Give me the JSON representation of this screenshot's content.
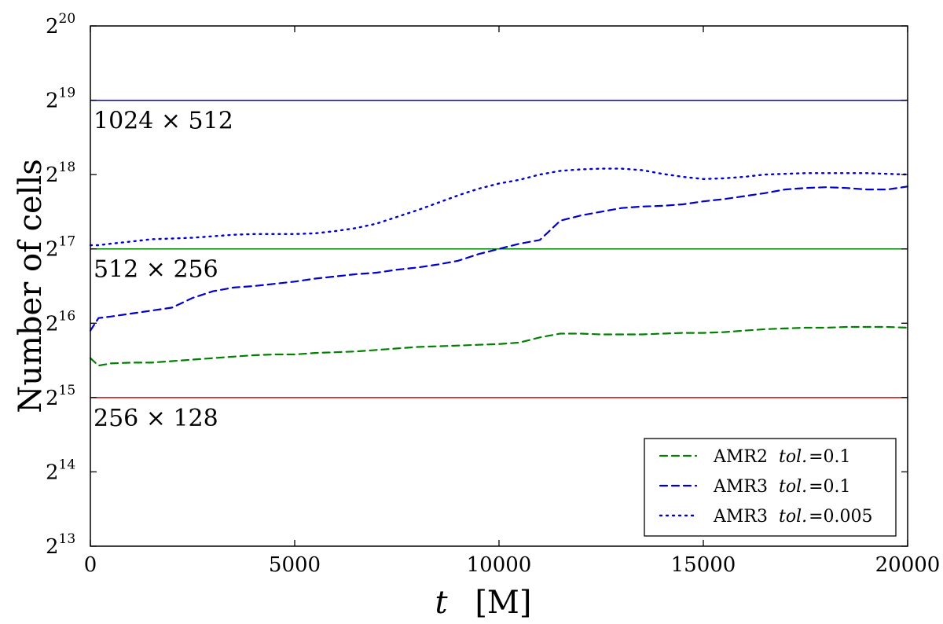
{
  "chart_data": {
    "type": "line",
    "xlabel": {
      "var": "t",
      "unit": "[M]"
    },
    "ylabel": "Number  of  cells",
    "xlim": [
      0,
      20000
    ],
    "ylim_log2": [
      13,
      20
    ],
    "y_scale": "log2",
    "grid": false,
    "legend_placement": "lower-right",
    "x_ticks": [
      {
        "value": 0,
        "label": "0"
      },
      {
        "value": 5000,
        "label": "5000"
      },
      {
        "value": 10000,
        "label": "10000"
      },
      {
        "value": 15000,
        "label": "15000"
      },
      {
        "value": 20000,
        "label": "20000"
      }
    ],
    "y_ticks": [
      {
        "exp": 13,
        "base": "2",
        "sup": "13"
      },
      {
        "exp": 14,
        "base": "2",
        "sup": "14"
      },
      {
        "exp": 15,
        "base": "2",
        "sup": "15"
      },
      {
        "exp": 16,
        "base": "2",
        "sup": "16"
      },
      {
        "exp": 17,
        "base": "2",
        "sup": "17"
      },
      {
        "exp": 18,
        "base": "2",
        "sup": "18"
      },
      {
        "exp": 19,
        "base": "2",
        "sup": "19"
      },
      {
        "exp": 20,
        "base": "2",
        "sup": "20"
      }
    ],
    "reference_lines": [
      {
        "label": "1024 × 512",
        "log2_value": 19,
        "color": "#0000cc"
      },
      {
        "label": "512 × 256",
        "log2_value": 17,
        "color": "#008000"
      },
      {
        "label": "256 × 128",
        "log2_value": 15,
        "color": "#e00000"
      }
    ],
    "series": [
      {
        "name": "AMR2",
        "tol_label": "tol.",
        "tol_value": "=0.1",
        "color": "#008000",
        "style": "dashed",
        "x": [
          0,
          200,
          500,
          1000,
          1500,
          2000,
          2500,
          3000,
          3500,
          4000,
          4500,
          5000,
          5500,
          6000,
          6500,
          7000,
          7500,
          8000,
          8500,
          9000,
          9500,
          10000,
          10500,
          11000,
          11500,
          12000,
          12500,
          13000,
          13500,
          14000,
          14500,
          15000,
          15500,
          16000,
          16500,
          17000,
          17500,
          18000,
          18500,
          19000,
          19500,
          20000
        ],
        "y_log2": [
          15.53,
          15.43,
          15.46,
          15.47,
          15.47,
          15.49,
          15.51,
          15.53,
          15.55,
          15.57,
          15.58,
          15.58,
          15.6,
          15.61,
          15.62,
          15.64,
          15.66,
          15.68,
          15.69,
          15.7,
          15.71,
          15.72,
          15.74,
          15.81,
          15.86,
          15.86,
          15.85,
          15.85,
          15.85,
          15.86,
          15.87,
          15.87,
          15.88,
          15.9,
          15.92,
          15.93,
          15.94,
          15.94,
          15.95,
          15.95,
          15.95,
          15.94
        ]
      },
      {
        "name": "AMR3",
        "tol_label": "tol.",
        "tol_value": "=0.1",
        "color": "#0000cc",
        "style": "dashed",
        "x": [
          0,
          200,
          500,
          1000,
          1500,
          2000,
          2500,
          3000,
          3500,
          4000,
          4500,
          5000,
          5500,
          6000,
          6500,
          7000,
          7500,
          8000,
          8500,
          9000,
          9500,
          10000,
          10500,
          11000,
          11500,
          12000,
          12500,
          13000,
          13500,
          14000,
          14500,
          15000,
          15500,
          16000,
          16500,
          17000,
          17500,
          18000,
          18500,
          19000,
          19500,
          20000
        ],
        "y_log2": [
          15.9,
          16.07,
          16.09,
          16.13,
          16.17,
          16.21,
          16.34,
          16.43,
          16.48,
          16.5,
          16.53,
          16.56,
          16.6,
          16.63,
          16.66,
          16.68,
          16.72,
          16.75,
          16.79,
          16.84,
          16.93,
          17.0,
          17.07,
          17.12,
          17.38,
          17.45,
          17.5,
          17.55,
          17.57,
          17.58,
          17.6,
          17.64,
          17.67,
          17.71,
          17.75,
          17.8,
          17.82,
          17.83,
          17.82,
          17.8,
          17.8,
          17.84
        ]
      },
      {
        "name": "AMR3",
        "tol_label": "tol.",
        "tol_value": "=0.005",
        "color": "#0000cc",
        "style": "dotted",
        "x": [
          0,
          200,
          500,
          1000,
          1500,
          2000,
          2500,
          3000,
          3500,
          4000,
          4500,
          5000,
          5500,
          6000,
          6500,
          7000,
          7500,
          8000,
          8500,
          9000,
          9500,
          10000,
          10500,
          11000,
          11500,
          12000,
          12500,
          13000,
          13500,
          14000,
          14500,
          15000,
          15500,
          16000,
          16500,
          17000,
          17500,
          18000,
          18500,
          19000,
          19500,
          20000
        ],
        "y_log2": [
          17.05,
          17.05,
          17.07,
          17.1,
          17.13,
          17.14,
          17.15,
          17.17,
          17.19,
          17.2,
          17.2,
          17.2,
          17.21,
          17.24,
          17.28,
          17.34,
          17.43,
          17.52,
          17.62,
          17.72,
          17.81,
          17.88,
          17.93,
          18.0,
          18.05,
          18.07,
          18.08,
          18.08,
          18.06,
          18.01,
          17.97,
          17.94,
          17.95,
          17.97,
          18.0,
          18.01,
          18.02,
          18.02,
          18.02,
          18.02,
          18.01,
          18.0
        ]
      }
    ]
  }
}
